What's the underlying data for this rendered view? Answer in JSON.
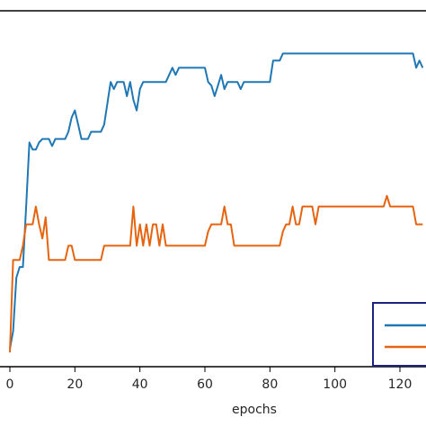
{
  "chart_data": {
    "type": "line",
    "title": "",
    "xlabel": "epochs",
    "ylabel": "",
    "xlim": [
      -2,
      128
    ],
    "ylim": [
      0,
      100
    ],
    "grid": false,
    "legend": "bottom-right",
    "x_ticks": [
      0,
      20,
      40,
      60,
      80,
      100,
      120
    ],
    "x_tick_labels": [
      "0",
      "20",
      "40",
      "60",
      "80",
      "100",
      "120"
    ],
    "series": [
      {
        "color": "#1f77b4",
        "points": [
          [
            0,
            5
          ],
          [
            1,
            10
          ],
          [
            2,
            25
          ],
          [
            3,
            28
          ],
          [
            4,
            28
          ],
          [
            5,
            45
          ],
          [
            6,
            63
          ],
          [
            7,
            61
          ],
          [
            8,
            61
          ],
          [
            9,
            63
          ],
          [
            10,
            64
          ],
          [
            11,
            64
          ],
          [
            12,
            64
          ],
          [
            13,
            62
          ],
          [
            14,
            64
          ],
          [
            15,
            64
          ],
          [
            16,
            64
          ],
          [
            17,
            64
          ],
          [
            18,
            66
          ],
          [
            19,
            70
          ],
          [
            20,
            72
          ],
          [
            21,
            68
          ],
          [
            22,
            64
          ],
          [
            23,
            64
          ],
          [
            24,
            64
          ],
          [
            25,
            66
          ],
          [
            26,
            66
          ],
          [
            27,
            66
          ],
          [
            28,
            66
          ],
          [
            29,
            68
          ],
          [
            30,
            74
          ],
          [
            31,
            80
          ],
          [
            32,
            78
          ],
          [
            33,
            80
          ],
          [
            34,
            80
          ],
          [
            35,
            80
          ],
          [
            36,
            76
          ],
          [
            37,
            80
          ],
          [
            38,
            75
          ],
          [
            39,
            72
          ],
          [
            40,
            78
          ],
          [
            41,
            80
          ],
          [
            42,
            80
          ],
          [
            43,
            80
          ],
          [
            44,
            80
          ],
          [
            45,
            80
          ],
          [
            46,
            80
          ],
          [
            47,
            80
          ],
          [
            48,
            80
          ],
          [
            49,
            82
          ],
          [
            50,
            84
          ],
          [
            51,
            82
          ],
          [
            52,
            84
          ],
          [
            53,
            84
          ],
          [
            54,
            84
          ],
          [
            55,
            84
          ],
          [
            56,
            84
          ],
          [
            57,
            84
          ],
          [
            58,
            84
          ],
          [
            59,
            84
          ],
          [
            60,
            84
          ],
          [
            61,
            80
          ],
          [
            62,
            79
          ],
          [
            63,
            76
          ],
          [
            64,
            79
          ],
          [
            65,
            82
          ],
          [
            66,
            78
          ],
          [
            67,
            80
          ],
          [
            68,
            80
          ],
          [
            69,
            80
          ],
          [
            70,
            80
          ],
          [
            71,
            78
          ],
          [
            72,
            80
          ],
          [
            73,
            80
          ],
          [
            74,
            80
          ],
          [
            75,
            80
          ],
          [
            76,
            80
          ],
          [
            77,
            80
          ],
          [
            78,
            80
          ],
          [
            79,
            80
          ],
          [
            80,
            80
          ],
          [
            81,
            86
          ],
          [
            82,
            86
          ],
          [
            83,
            86
          ],
          [
            84,
            88
          ],
          [
            85,
            88
          ],
          [
            86,
            88
          ],
          [
            87,
            88
          ],
          [
            88,
            88
          ],
          [
            89,
            88
          ],
          [
            90,
            88
          ],
          [
            95,
            88
          ],
          [
            100,
            88
          ],
          [
            105,
            88
          ],
          [
            110,
            88
          ],
          [
            115,
            88
          ],
          [
            120,
            88
          ],
          [
            124,
            88
          ],
          [
            125,
            84
          ],
          [
            126,
            86
          ],
          [
            127,
            84
          ]
        ]
      },
      {
        "color": "#e6640f",
        "points": [
          [
            0,
            4
          ],
          [
            1,
            30
          ],
          [
            2,
            30
          ],
          [
            3,
            30
          ],
          [
            4,
            34
          ],
          [
            5,
            40
          ],
          [
            6,
            40
          ],
          [
            7,
            40
          ],
          [
            8,
            45
          ],
          [
            9,
            40
          ],
          [
            10,
            36
          ],
          [
            11,
            42
          ],
          [
            12,
            30
          ],
          [
            13,
            30
          ],
          [
            14,
            30
          ],
          [
            15,
            30
          ],
          [
            16,
            30
          ],
          [
            17,
            30
          ],
          [
            18,
            34
          ],
          [
            19,
            34
          ],
          [
            20,
            30
          ],
          [
            21,
            30
          ],
          [
            22,
            30
          ],
          [
            23,
            30
          ],
          [
            24,
            30
          ],
          [
            25,
            30
          ],
          [
            26,
            30
          ],
          [
            27,
            30
          ],
          [
            28,
            30
          ],
          [
            29,
            34
          ],
          [
            30,
            34
          ],
          [
            31,
            34
          ],
          [
            32,
            34
          ],
          [
            33,
            34
          ],
          [
            34,
            34
          ],
          [
            35,
            34
          ],
          [
            36,
            34
          ],
          [
            37,
            34
          ],
          [
            38,
            45
          ],
          [
            39,
            34
          ],
          [
            40,
            40
          ],
          [
            41,
            34
          ],
          [
            42,
            40
          ],
          [
            43,
            34
          ],
          [
            44,
            40
          ],
          [
            45,
            40
          ],
          [
            46,
            34
          ],
          [
            47,
            40
          ],
          [
            48,
            34
          ],
          [
            49,
            34
          ],
          [
            50,
            34
          ],
          [
            51,
            34
          ],
          [
            52,
            34
          ],
          [
            53,
            34
          ],
          [
            54,
            34
          ],
          [
            55,
            34
          ],
          [
            56,
            34
          ],
          [
            57,
            34
          ],
          [
            58,
            34
          ],
          [
            59,
            34
          ],
          [
            60,
            34
          ],
          [
            61,
            38
          ],
          [
            62,
            40
          ],
          [
            63,
            40
          ],
          [
            64,
            40
          ],
          [
            65,
            40
          ],
          [
            66,
            45
          ],
          [
            67,
            40
          ],
          [
            68,
            40
          ],
          [
            69,
            34
          ],
          [
            70,
            34
          ],
          [
            71,
            34
          ],
          [
            72,
            34
          ],
          [
            73,
            34
          ],
          [
            74,
            34
          ],
          [
            75,
            34
          ],
          [
            76,
            34
          ],
          [
            77,
            34
          ],
          [
            78,
            34
          ],
          [
            79,
            34
          ],
          [
            80,
            34
          ],
          [
            81,
            34
          ],
          [
            82,
            34
          ],
          [
            83,
            34
          ],
          [
            84,
            38
          ],
          [
            85,
            40
          ],
          [
            86,
            40
          ],
          [
            87,
            45
          ],
          [
            88,
            40
          ],
          [
            89,
            40
          ],
          [
            90,
            45
          ],
          [
            91,
            45
          ],
          [
            92,
            45
          ],
          [
            93,
            45
          ],
          [
            94,
            40
          ],
          [
            95,
            45
          ],
          [
            96,
            45
          ],
          [
            97,
            45
          ],
          [
            98,
            45
          ],
          [
            99,
            45
          ],
          [
            100,
            45
          ],
          [
            101,
            45
          ],
          [
            102,
            45
          ],
          [
            103,
            45
          ],
          [
            104,
            45
          ],
          [
            105,
            45
          ],
          [
            106,
            45
          ],
          [
            107,
            45
          ],
          [
            108,
            45
          ],
          [
            109,
            45
          ],
          [
            110,
            45
          ],
          [
            111,
            45
          ],
          [
            112,
            45
          ],
          [
            113,
            45
          ],
          [
            114,
            45
          ],
          [
            115,
            45
          ],
          [
            116,
            48
          ],
          [
            117,
            45
          ],
          [
            118,
            45
          ],
          [
            119,
            45
          ],
          [
            120,
            45
          ],
          [
            121,
            45
          ],
          [
            122,
            45
          ],
          [
            123,
            45
          ],
          [
            124,
            45
          ],
          [
            125,
            40
          ],
          [
            126,
            40
          ],
          [
            127,
            40
          ]
        ]
      }
    ],
    "legend_box_color": "#1a237e"
  }
}
